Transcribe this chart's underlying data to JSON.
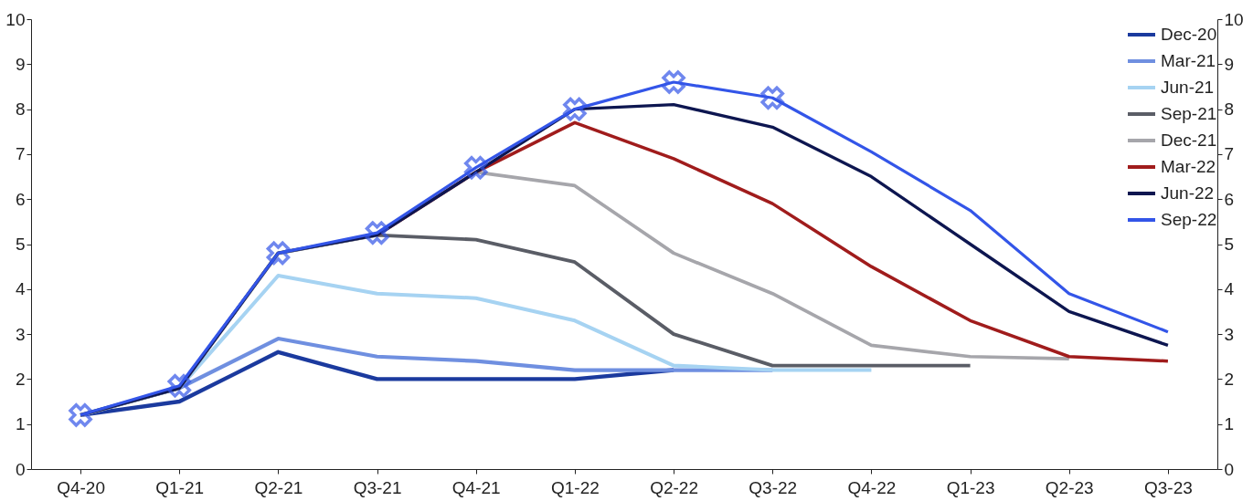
{
  "chart_data": {
    "type": "line",
    "categories": [
      "Q4-20",
      "Q1-21",
      "Q2-21",
      "Q3-21",
      "Q4-21",
      "Q1-22",
      "Q2-22",
      "Q3-22",
      "Q4-22",
      "Q1-23",
      "Q2-23",
      "Q3-23"
    ],
    "series": [
      {
        "name": "Dec-20",
        "color": "#1b3a9e",
        "values": [
          1.2,
          1.5,
          2.6,
          2.0,
          2.0,
          2.0,
          2.2,
          null,
          null,
          null,
          null,
          null
        ]
      },
      {
        "name": "Mar-21",
        "color": "#6f8fe0",
        "values": [
          1.2,
          1.8,
          2.9,
          2.5,
          2.4,
          2.2,
          2.2,
          2.2,
          null,
          null,
          null,
          null
        ]
      },
      {
        "name": "Jun-21",
        "color": "#a6d3f2",
        "values": [
          1.2,
          1.8,
          4.3,
          3.9,
          3.8,
          3.3,
          2.3,
          2.2,
          2.2,
          null,
          null,
          null
        ]
      },
      {
        "name": "Sep-21",
        "color": "#5a5d66",
        "values": [
          1.2,
          1.8,
          4.8,
          5.2,
          5.1,
          4.6,
          3.0,
          2.3,
          2.3,
          2.3,
          null,
          null
        ]
      },
      {
        "name": "Dec-21",
        "color": "#a6a6ab",
        "values": [
          1.2,
          1.8,
          4.8,
          5.2,
          6.6,
          6.3,
          4.8,
          3.9,
          2.75,
          2.5,
          2.45,
          null
        ]
      },
      {
        "name": "Mar-22",
        "color": "#a01c1c",
        "values": [
          null,
          null,
          null,
          5.2,
          6.6,
          7.7,
          6.9,
          5.9,
          4.5,
          3.3,
          2.5,
          2.4
        ]
      },
      {
        "name": "Jun-22",
        "color": "#0d1650",
        "values": [
          1.2,
          1.8,
          4.8,
          5.2,
          6.6,
          8.0,
          8.1,
          7.6,
          6.5,
          5.0,
          3.5,
          2.75
        ]
      },
      {
        "name": "Sep-22",
        "color": "#3355e8",
        "values": [
          1.2,
          1.85,
          4.8,
          5.25,
          6.7,
          8.0,
          8.6,
          8.25,
          7.05,
          5.75,
          3.9,
          3.05
        ]
      },
      {
        "type": "scatter",
        "marker": "cross",
        "color": "#3355e8",
        "x": [
          "Q4-20",
          "Q1-21",
          "Q2-21",
          "Q3-21",
          "Q4-21",
          "Q1-22",
          "Q2-22",
          "Q3-22"
        ],
        "values": [
          1.2,
          1.85,
          4.8,
          5.25,
          6.7,
          8.0,
          8.6,
          8.25
        ]
      }
    ],
    "ylim": [
      0,
      10
    ],
    "yticks": [
      0,
      1,
      2,
      3,
      4,
      5,
      6,
      7,
      8,
      9,
      10
    ],
    "y2lim": [
      0,
      10
    ],
    "y2ticks": [
      0,
      1,
      2,
      3,
      4,
      5,
      6,
      7,
      8,
      9,
      10
    ],
    "grid": false,
    "legend": "top right",
    "line_style": "solid"
  }
}
